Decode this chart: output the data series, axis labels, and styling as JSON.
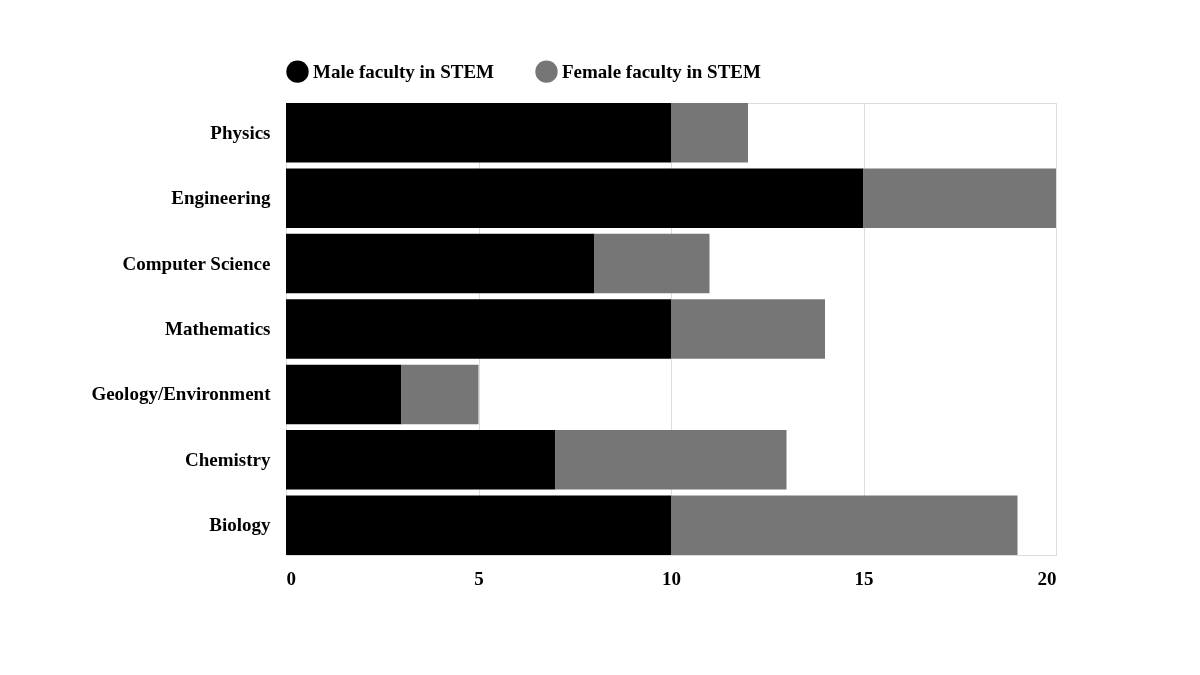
{
  "chart_data": {
    "type": "bar",
    "orientation": "horizontal",
    "stacked": true,
    "categories": [
      "Physics",
      "Engineering",
      "Computer Science",
      "Mathematics",
      "Geology/Environment",
      "Chemistry",
      "Biology"
    ],
    "series": [
      {
        "name": "Male faculty in STEM",
        "color": "#000000",
        "values": [
          10,
          15,
          8,
          10,
          3,
          7,
          10
        ]
      },
      {
        "name": "Female faculty in STEM",
        "color": "#767676",
        "values": [
          2,
          5,
          3,
          4,
          2,
          6,
          9
        ]
      }
    ],
    "xlim": [
      0,
      20
    ],
    "xticks": [
      0,
      5,
      10,
      15,
      20
    ],
    "grid": "x",
    "legend": "top"
  }
}
